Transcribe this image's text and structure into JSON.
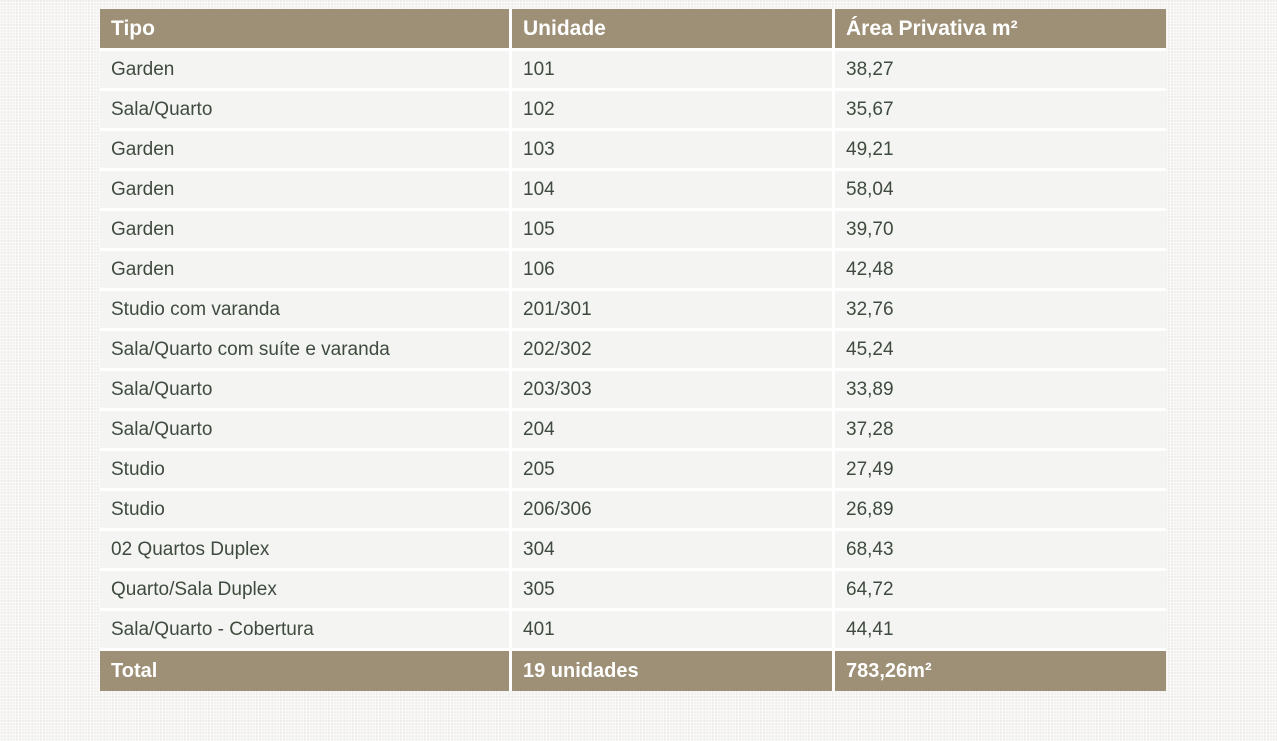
{
  "table": {
    "columns": [
      {
        "key": "tipo",
        "label": "Tipo"
      },
      {
        "key": "unidade",
        "label": "Unidade"
      },
      {
        "key": "area",
        "label": "Área Privativa m²"
      }
    ],
    "rows": [
      {
        "tipo": "Garden",
        "unidade": "101",
        "area": "38,27"
      },
      {
        "tipo": "Sala/Quarto",
        "unidade": "102",
        "area": "35,67"
      },
      {
        "tipo": "Garden",
        "unidade": "103",
        "area": "49,21"
      },
      {
        "tipo": "Garden",
        "unidade": "104",
        "area": "58,04"
      },
      {
        "tipo": "Garden",
        "unidade": "105",
        "area": "39,70"
      },
      {
        "tipo": "Garden",
        "unidade": "106",
        "area": "42,48"
      },
      {
        "tipo": "Studio com varanda",
        "unidade": "201/301",
        "area": "32,76"
      },
      {
        "tipo": "Sala/Quarto com suíte e varanda",
        "unidade": "202/302",
        "area": "45,24"
      },
      {
        "tipo": "Sala/Quarto",
        "unidade": "203/303",
        "area": "33,89"
      },
      {
        "tipo": "Sala/Quarto",
        "unidade": "204",
        "area": "37,28"
      },
      {
        "tipo": "Studio",
        "unidade": "205",
        "area": "27,49"
      },
      {
        "tipo": "Studio",
        "unidade": "206/306",
        "area": "26,89"
      },
      {
        "tipo": "02 Quartos Duplex",
        "unidade": "304",
        "area": "68,43"
      },
      {
        "tipo": "Quarto/Sala Duplex",
        "unidade": "305",
        "area": "64,72"
      },
      {
        "tipo": "Sala/Quarto - Cobertura",
        "unidade": "401",
        "area": "44,41"
      }
    ],
    "total": {
      "label": "Total",
      "unidade": "19 unidades",
      "area": "783,26m²"
    }
  },
  "colors": {
    "header_bg": "#9e9077",
    "header_text": "#ffffff",
    "row_bg": "#f4f4f3",
    "row_text": "#3f4b3f",
    "gap": "#ffffff",
    "page_bg": "#f3f2f0"
  }
}
